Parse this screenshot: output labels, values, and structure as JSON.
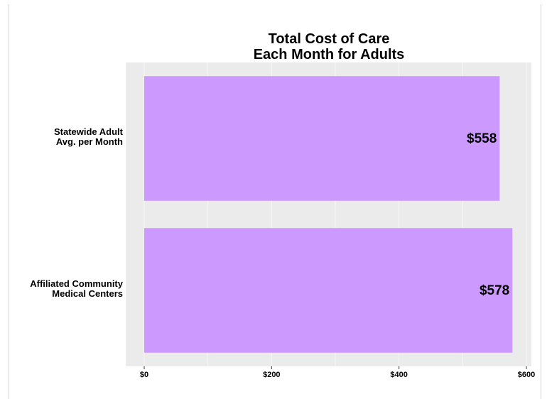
{
  "chart_data": {
    "type": "bar",
    "orientation": "horizontal",
    "title": [
      "Total Cost of Care",
      "Each Month for Adults"
    ],
    "categories": [
      [
        "Statewide Adult",
        "Avg. per Month"
      ],
      [
        "Affiliated Community",
        "Medical Centers"
      ]
    ],
    "values": [
      558,
      578
    ],
    "data_labels": [
      "$558",
      "$578"
    ],
    "xlim": [
      0,
      600
    ],
    "ticks": [
      0,
      200,
      400,
      600
    ],
    "tick_labels": [
      "$0",
      "$200",
      "$400",
      "$600"
    ],
    "xlabel": "",
    "ylabel": "",
    "grid": true,
    "bar_color": "#cc99ff",
    "panel_color": "#ebebeb",
    "grid_color": "#f7f7f7"
  }
}
